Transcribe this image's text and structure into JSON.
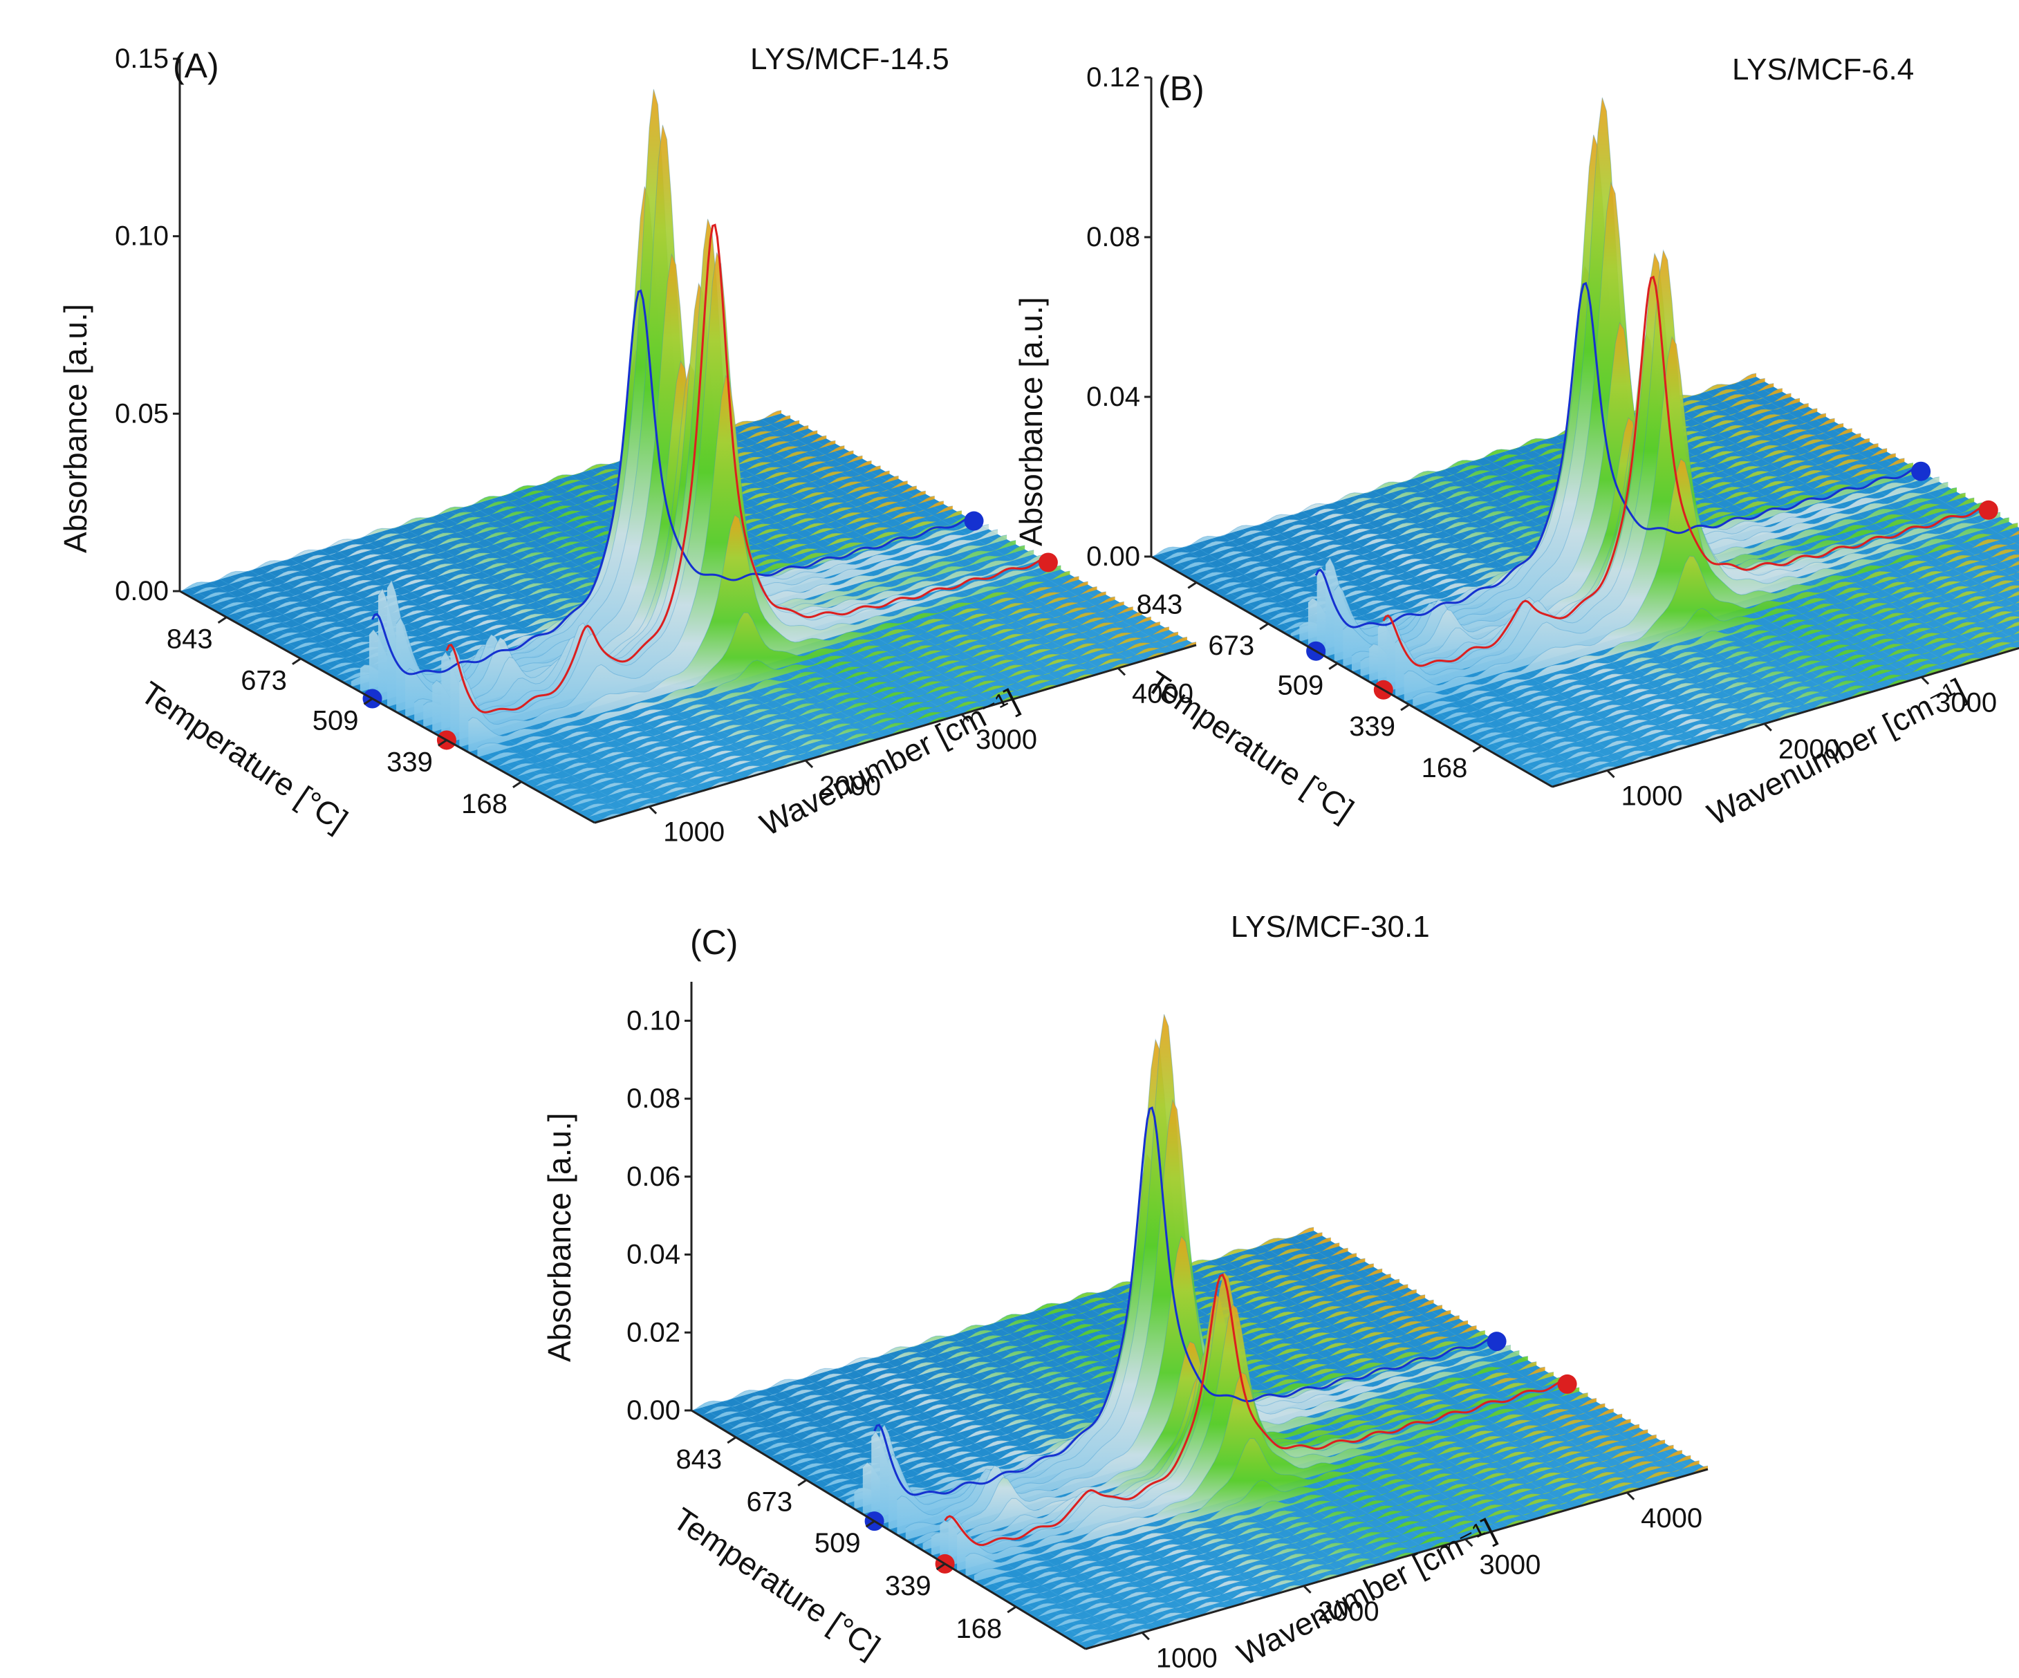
{
  "colors": {
    "floor": "#1d87c9",
    "floor_ridge": "#4eb3e6",
    "peak_low": "#79c3ea",
    "peak_mid": "#43c61a",
    "peak_top": "#e7a21c",
    "trace_blue": "#1531d0",
    "trace_red": "#dc1f1f"
  },
  "chart_data": [
    {
      "type": "3d-surface",
      "panel": "(A)",
      "title": "LYS/MCF-14.5",
      "zlabel": "Absorbance [a.u.]",
      "temperature_label": "Temperature [°C]",
      "wavenumber_label": "Wavenumber [cm⁻¹]",
      "zlim": [
        0,
        0.15
      ],
      "z_ticks": [
        "0.00",
        "0.05",
        "0.10",
        "0.15"
      ],
      "z_tick_values": [
        0,
        0.05,
        0.1,
        0.15
      ],
      "temperature_ticks": [
        "843",
        "673",
        "509",
        "339",
        "168"
      ],
      "temperature_tick_values": [
        843,
        673,
        509,
        339,
        168
      ],
      "temperature_range": [
        0,
        950
      ],
      "wavenumber_ticks": [
        "1000",
        "2000",
        "3000",
        "4000"
      ],
      "wavenumber_tick_values": [
        1000,
        2000,
        3000,
        4000
      ],
      "wavenumber_range": [
        650,
        4500
      ],
      "peaks": [
        {
          "wavenumber": 2360,
          "temperature": 470,
          "absorbance": 0.152,
          "color": "green"
        },
        {
          "wavenumber": 2360,
          "temperature": 345,
          "absorbance": 0.123,
          "color": "green"
        },
        {
          "wavenumber": 670,
          "temperature": 480,
          "absorbance": 0.035,
          "color": "white"
        },
        {
          "wavenumber": 670,
          "temperature": 335,
          "absorbance": 0.026,
          "color": "white"
        },
        {
          "wavenumber": 1200,
          "temperature": 420,
          "absorbance": 0.015,
          "color": "gray"
        },
        {
          "wavenumber": 1550,
          "temperature": 345,
          "absorbance": 0.018,
          "color": "gray"
        }
      ],
      "cross_sections": [
        {
          "color": "blue",
          "temperature": 509
        },
        {
          "color": "red",
          "temperature": 339
        }
      ]
    },
    {
      "type": "3d-surface",
      "panel": "(B)",
      "title": "LYS/MCF-6.4",
      "zlabel": "Absorbance [a.u.]",
      "temperature_label": "Temperature [°C]",
      "wavenumber_label": "Wavenumber [cm⁻¹]",
      "zlim": [
        0,
        0.12
      ],
      "z_ticks": [
        "0.00",
        "0.04",
        "0.08",
        "0.12"
      ],
      "z_tick_values": [
        0,
        0.04,
        0.08,
        0.12
      ],
      "temperature_ticks": [
        "843",
        "673",
        "509",
        "339",
        "168"
      ],
      "temperature_tick_values": [
        843,
        673,
        509,
        339,
        168
      ],
      "temperature_range": [
        0,
        950
      ],
      "wavenumber_ticks": [
        "1000",
        "2000",
        "3000",
        "4000"
      ],
      "wavenumber_tick_values": [
        1000,
        2000,
        3000,
        4000
      ],
      "wavenumber_range": [
        650,
        4500
      ],
      "peaks": [
        {
          "wavenumber": 2360,
          "temperature": 520,
          "absorbance": 0.121,
          "color": "green"
        },
        {
          "wavenumber": 2360,
          "temperature": 380,
          "absorbance": 0.093,
          "color": "green"
        },
        {
          "wavenumber": 670,
          "temperature": 540,
          "absorbance": 0.024,
          "color": "white"
        },
        {
          "wavenumber": 670,
          "temperature": 395,
          "absorbance": 0.018,
          "color": "white"
        },
        {
          "wavenumber": 1200,
          "temperature": 470,
          "absorbance": 0.01,
          "color": "gray"
        },
        {
          "wavenumber": 1550,
          "temperature": 380,
          "absorbance": 0.012,
          "color": "gray"
        }
      ],
      "cross_sections": [
        {
          "color": "blue",
          "temperature": 560
        },
        {
          "color": "red",
          "temperature": 400
        }
      ]
    },
    {
      "type": "3d-surface",
      "panel": "(C)",
      "title": "LYS/MCF-30.1",
      "zlabel": "Absorbance [a.u.]",
      "temperature_label": "Temperature [°C]",
      "wavenumber_label": "Wavenumber [cm⁻¹]",
      "zlim": [
        0,
        0.11
      ],
      "z_ticks": [
        "0.00",
        "0.02",
        "0.04",
        "0.06",
        "0.08",
        "0.10"
      ],
      "z_tick_values": [
        0,
        0.02,
        0.04,
        0.06,
        0.08,
        0.1
      ],
      "temperature_ticks": [
        "843",
        "673",
        "509",
        "339",
        "168"
      ],
      "temperature_tick_values": [
        843,
        673,
        509,
        339,
        168
      ],
      "temperature_range": [
        0,
        950
      ],
      "wavenumber_ticks": [
        "1000",
        "2000",
        "3000",
        "4000"
      ],
      "wavenumber_tick_values": [
        1000,
        2000,
        3000,
        4000
      ],
      "wavenumber_range": [
        650,
        4500
      ],
      "peaks": [
        {
          "wavenumber": 2360,
          "temperature": 480,
          "absorbance": 0.112,
          "color": "green"
        },
        {
          "wavenumber": 2360,
          "temperature": 330,
          "absorbance": 0.054,
          "color": "green"
        },
        {
          "wavenumber": 670,
          "temperature": 500,
          "absorbance": 0.025,
          "color": "white"
        },
        {
          "wavenumber": 670,
          "temperature": 330,
          "absorbance": 0.012,
          "color": "white"
        },
        {
          "wavenumber": 1200,
          "temperature": 430,
          "absorbance": 0.011,
          "color": "gray"
        },
        {
          "wavenumber": 1550,
          "temperature": 335,
          "absorbance": 0.007,
          "color": "gray"
        }
      ],
      "cross_sections": [
        {
          "color": "blue",
          "temperature": 509
        },
        {
          "color": "red",
          "temperature": 339
        }
      ]
    }
  ]
}
